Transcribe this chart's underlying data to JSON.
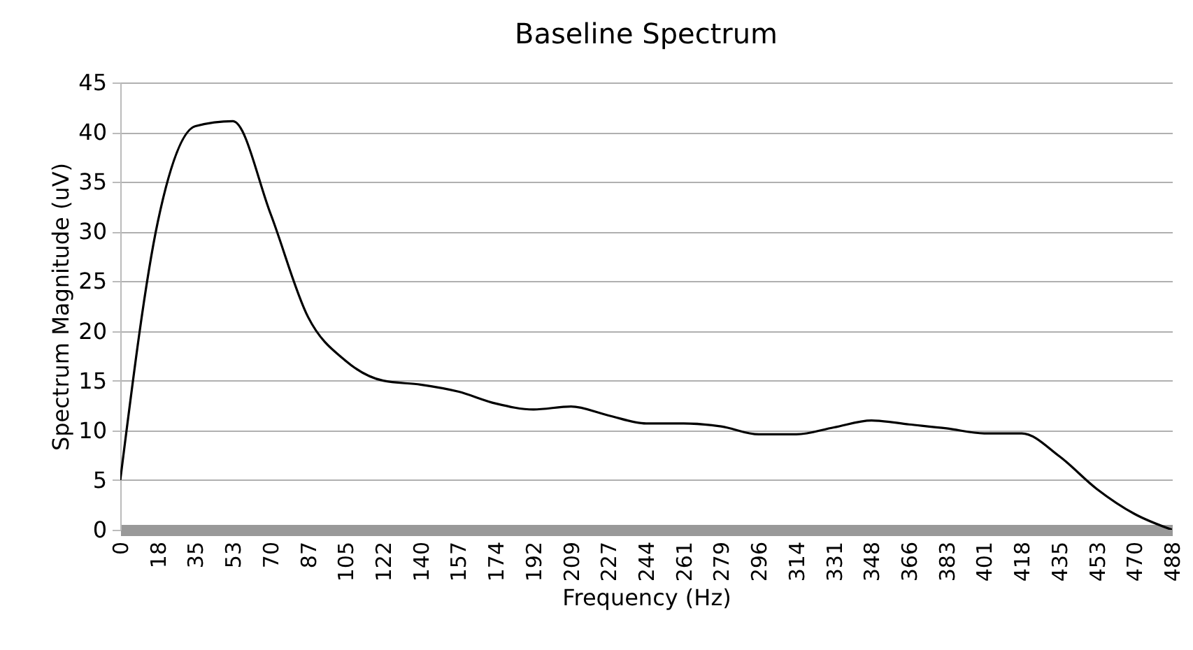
{
  "chart_data": {
    "type": "line",
    "title": "Baseline Spectrum",
    "xlabel": "Frequency (Hz)",
    "ylabel": "Spectrum Magnitude (uV)",
    "categories": [
      "0",
      "18",
      "35",
      "53",
      "70",
      "87",
      "105",
      "122",
      "140",
      "157",
      "174",
      "192",
      "209",
      "227",
      "244",
      "261",
      "279",
      "296",
      "314",
      "331",
      "348",
      "366",
      "383",
      "401",
      "418",
      "435",
      "453",
      "470",
      "488"
    ],
    "series": [
      {
        "color": "#000000",
        "values": [
          5,
          31,
          40.6,
          41.1,
          31.8,
          21.4,
          17,
          15,
          14.6,
          13.9,
          12.7,
          12.1,
          12.4,
          11.5,
          10.7,
          10.7,
          10.4,
          9.6,
          9.6,
          10.3,
          11,
          10.6,
          10.2,
          9.7,
          9.7,
          7.4,
          4.1,
          1.6,
          0
        ]
      }
    ],
    "ylim": [
      0,
      45
    ],
    "yticks": [
      0,
      5,
      10,
      15,
      20,
      25,
      30,
      35,
      40,
      45
    ],
    "grid": "y",
    "marker": "none",
    "line_style": "solid"
  }
}
